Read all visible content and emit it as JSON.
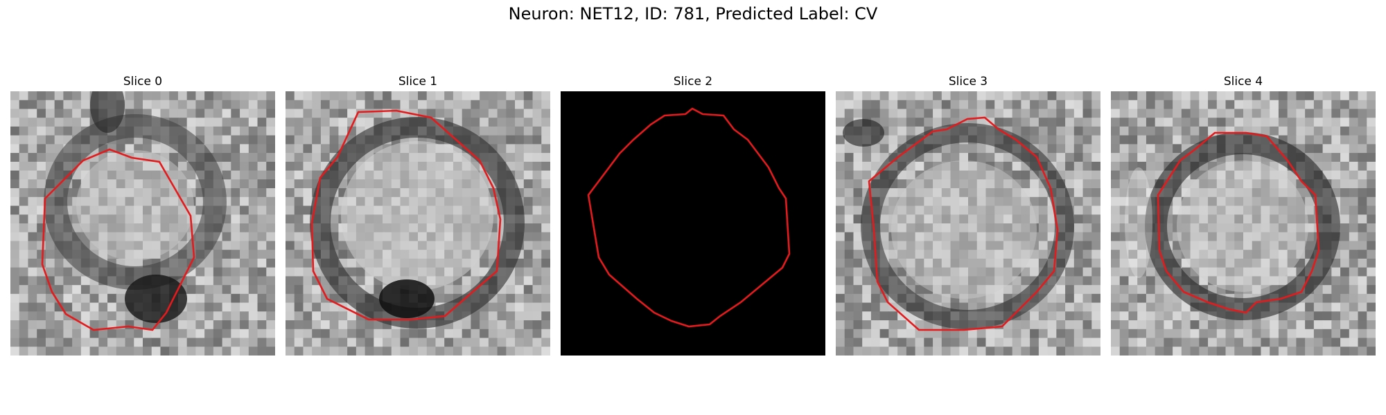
{
  "figure": {
    "title": "Neuron: NET12, ID: 781, Predicted Label: CV",
    "contour_color": "#e41a1c"
  },
  "panels": [
    {
      "title": "Slice 0",
      "image": "grayscale-em-patch",
      "blank": false
    },
    {
      "title": "Slice 1",
      "image": "grayscale-em-patch",
      "blank": false
    },
    {
      "title": "Slice 2",
      "image": "blank-black-patch",
      "blank": true
    },
    {
      "title": "Slice 3",
      "image": "grayscale-em-patch",
      "blank": false
    },
    {
      "title": "Slice 4",
      "image": "grayscale-em-patch",
      "blank": false
    }
  ]
}
